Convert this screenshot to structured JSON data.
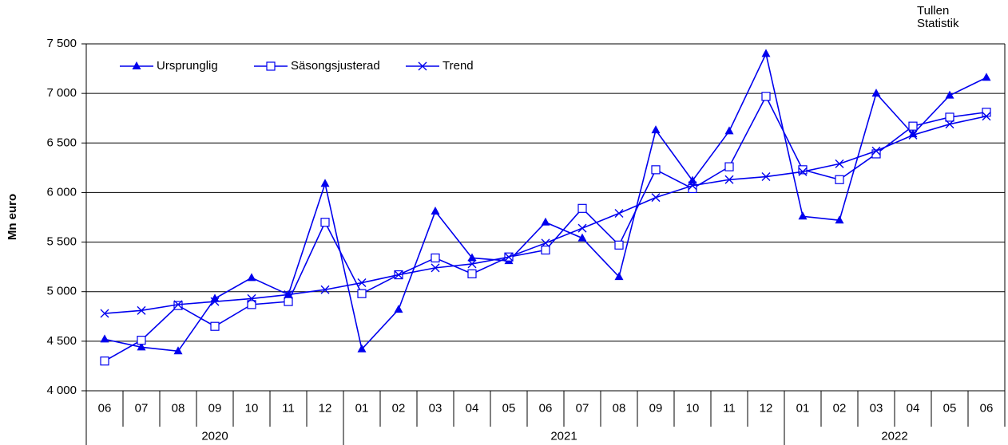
{
  "chart_data": {
    "type": "line",
    "source": [
      "Tullen",
      "Statistik"
    ],
    "ylabel": "Mn euro",
    "categories": [
      "06",
      "07",
      "08",
      "09",
      "10",
      "11",
      "12",
      "01",
      "02",
      "03",
      "04",
      "05",
      "06",
      "07",
      "08",
      "09",
      "10",
      "11",
      "12",
      "01",
      "02",
      "03",
      "04",
      "05",
      "06"
    ],
    "x_groups": [
      {
        "label": "2020",
        "count": 7
      },
      {
        "label": "2021",
        "count": 12
      },
      {
        "label": "2022",
        "count": 6
      }
    ],
    "series": [
      {
        "name": "Ursprunglig",
        "color": "#0000ee",
        "marker": "triangle",
        "values": [
          4520,
          4440,
          4400,
          4930,
          5140,
          4970,
          6090,
          4420,
          4820,
          5810,
          5340,
          5310,
          5700,
          5540,
          5150,
          6630,
          6120,
          6620,
          7400,
          5760,
          5720,
          7000,
          6590,
          6980,
          7160
        ]
      },
      {
        "name": "Säsongsjusterad",
        "color": "#0000ee",
        "marker": "square",
        "values": [
          4300,
          4510,
          4860,
          4650,
          4870,
          4900,
          5700,
          4980,
          5170,
          5340,
          5180,
          5350,
          5420,
          5840,
          5470,
          6230,
          6040,
          6260,
          6970,
          6230,
          6130,
          6390,
          6670,
          6760,
          6810
        ]
      },
      {
        "name": "Trend",
        "color": "#0000ee",
        "marker": "x",
        "values": [
          4780,
          4810,
          4870,
          4900,
          4930,
          4970,
          5020,
          5090,
          5170,
          5240,
          5280,
          5350,
          5490,
          5640,
          5790,
          5950,
          6070,
          6130,
          6160,
          6210,
          6290,
          6420,
          6580,
          6690,
          6770
        ]
      }
    ],
    "ylim": [
      4000,
      7500
    ],
    "yticks": [
      {
        "value": 4000,
        "label": "4 000"
      },
      {
        "value": 4500,
        "label": "4 500"
      },
      {
        "value": 5000,
        "label": "5 000"
      },
      {
        "value": 5500,
        "label": "5 500"
      },
      {
        "value": 6000,
        "label": "6 000"
      },
      {
        "value": 6500,
        "label": "6 500"
      },
      {
        "value": 7000,
        "label": "7 000"
      },
      {
        "value": 7500,
        "label": "7 500"
      }
    ],
    "grid": true,
    "legend": "top-left"
  }
}
